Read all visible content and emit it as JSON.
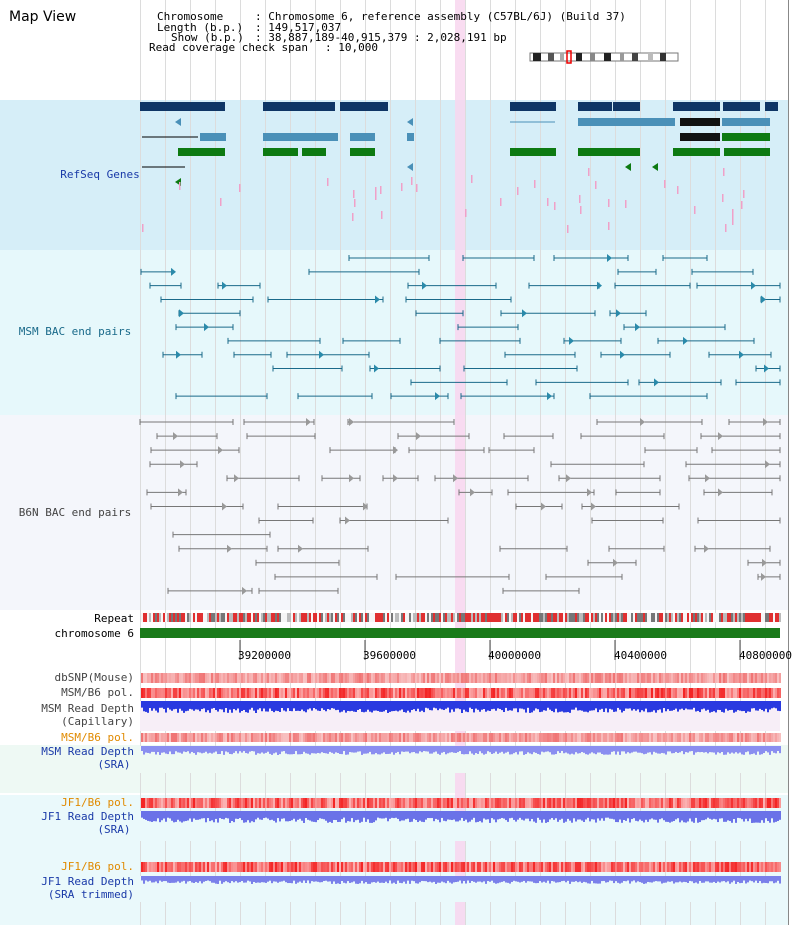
{
  "page_title": "Map View",
  "header": {
    "chromosome_key": "Chromosome",
    "chromosome_val": ": Chromosome 6, reference assembly (C57BL/6J) (Build 37)",
    "length_key": "Length (b.p.)",
    "length_val": ": 149,517,037",
    "show_key": "Show (b.p.)",
    "show_val": ": 38,887,189-40,915,379 : 2,028,191 bp",
    "coverage_key": "Read coverage check span",
    "coverage_val": ": 10,000"
  },
  "tracks": {
    "refseq_genes": "RefSeq Genes",
    "msm_bac": "MSM BAC end pairs",
    "b6n_bac": "B6N BAC end pairs",
    "repeat": "Repeat",
    "chromosome": "chromosome 6",
    "dbsnp": "dbSNP(Mouse)",
    "msm_b6_pol": "MSM/B6 pol.",
    "msm_depth_cap_1": "MSM Read Depth",
    "msm_depth_cap_2": "(Capillary)",
    "msm_b6_pol2": "MSM/B6 pol.",
    "msm_depth_sra_1": "MSM Read Depth",
    "msm_depth_sra_2": "(SRA)",
    "jf1_b6_pol": "JF1/B6 pol.",
    "jf1_depth_sra_1": "JF1 Read Depth",
    "jf1_depth_sra_2": "(SRA)",
    "jf1_b6_pol2": "JF1/B6 pol.",
    "jf1_depth_trim_1": "JF1 Read Depth",
    "jf1_depth_trim_2": "(SRA trimmed)"
  },
  "axis_ticks": [
    "39200000",
    "39600000",
    "40000000",
    "40400000",
    "40800000"
  ],
  "colors": {
    "refseq_bg": "#d6eef8",
    "msm_bg": "#e6f8fb",
    "b6n_bg": "#f4f6fb",
    "lower_bg": "#eef9f4",
    "highlight": "#f8d6ef",
    "dark_blue": "#0f3565",
    "mid_blue": "#4a90b8",
    "green": "#0d7a12",
    "chrom_green": "#1a7a1a",
    "label_blue": "#1a3aa8",
    "label_orange": "#e08a00",
    "label_teal": "#1a6a8a",
    "label_gray": "#444444"
  }
}
